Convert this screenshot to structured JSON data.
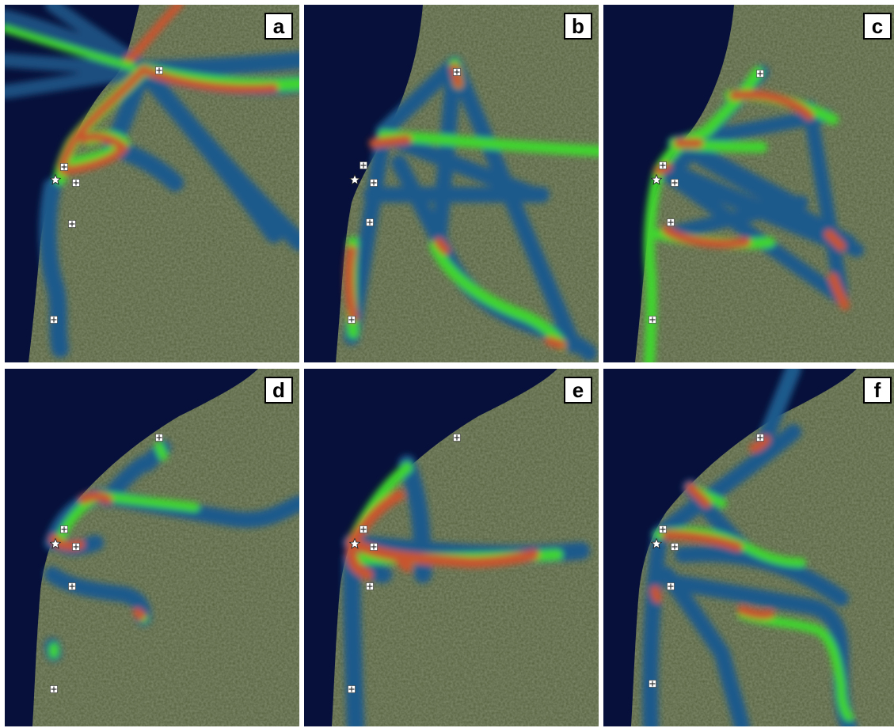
{
  "figure": {
    "panels": [
      {
        "id": "a",
        "label": "a"
      },
      {
        "id": "b",
        "label": "b"
      },
      {
        "id": "c",
        "label": "c"
      },
      {
        "id": "d",
        "label": "d"
      },
      {
        "id": "e",
        "label": "e"
      },
      {
        "id": "f",
        "label": "f"
      }
    ]
  },
  "colors": {
    "sea": "#07103a",
    "land_base": "#56613f",
    "land_dark": "#3d4a2c",
    "land_light": "#8a8c76",
    "heat_low": "#1d5a8c",
    "heat_mid_low": "#19a6a0",
    "heat_mid": "#41d52e",
    "heat_high": "#f4f01c",
    "heat_max": "#c8552e",
    "marker_star": "#ffffff",
    "label_bg": "#ffffff",
    "label_text": "#000000"
  },
  "legend_icons": [
    "star-marker-icon",
    "facility-marker-icon"
  ]
}
